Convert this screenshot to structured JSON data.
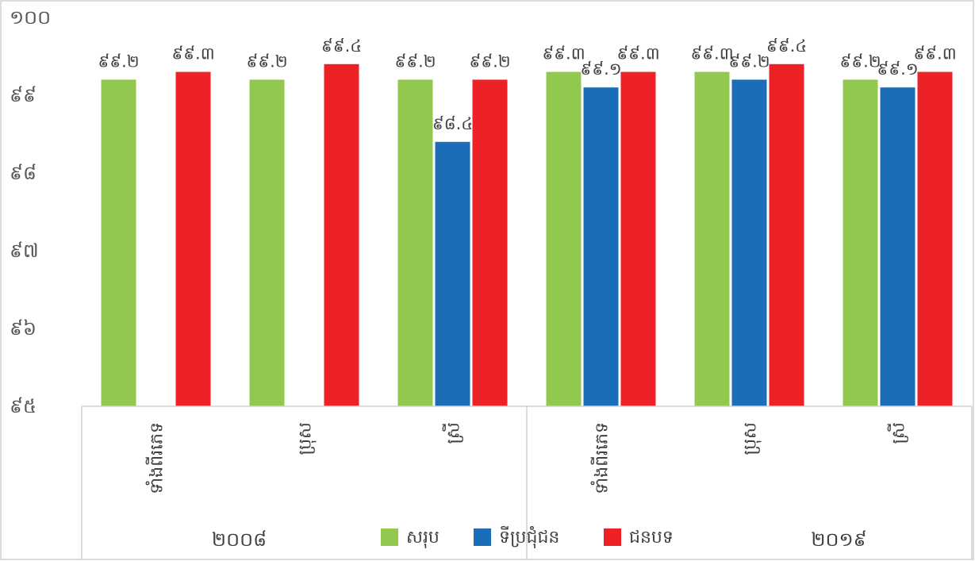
{
  "chart_data": {
    "type": "bar",
    "title": "",
    "xlabel": "",
    "ylabel": "",
    "ylim": [
      95,
      100
    ],
    "y_ticks": [
      "៩៥",
      "៩៦",
      "៩៧",
      "៩៨",
      "៩៩",
      "១០០"
    ],
    "y_tick_values": [
      95,
      96,
      97,
      98,
      99,
      100
    ],
    "groups": [
      {
        "label": "២០០៨",
        "categories": [
          "ទាំងពីរភេទ",
          "ប្រុស",
          "ស្រី"
        ]
      },
      {
        "label": "២០១៩",
        "categories": [
          "ទាំងពីរភេទ",
          "ប្រុស",
          "ស្រី"
        ]
      }
    ],
    "categories": [
      "ទាំងពីរភេទ",
      "ប្រុស",
      "ស្រី",
      "ទាំងពីរភេទ",
      "ប្រុស",
      "ស្រី"
    ],
    "series": [
      {
        "name": "សរុប",
        "color": "#92C84F",
        "values": [
          99.2,
          99.2,
          99.2,
          99.3,
          99.3,
          99.2
        ],
        "labels": [
          "៩៩.២",
          "៩៩.២",
          "៩៩.២",
          "៩៩.៣",
          "៩៩.៣",
          "៩៩.២"
        ]
      },
      {
        "name": "ទីប្រជុំជន",
        "color": "#1B6DB7",
        "values": [
          null,
          null,
          98.4,
          99.1,
          99.2,
          99.1
        ],
        "labels": [
          "",
          "",
          "៩៨.៤",
          "៩៩.១",
          "៩៩.២",
          "៩៩.១"
        ]
      },
      {
        "name": "ជនបទ",
        "color": "#ED2226",
        "values": [
          99.3,
          99.4,
          99.2,
          99.3,
          99.4,
          99.3
        ],
        "labels": [
          "៩៩.៣",
          "៩៩.៤",
          "៩៩.២",
          "៩៩.៣",
          "៩៩.៤",
          "៩៩.៣"
        ]
      }
    ],
    "grid": false,
    "legend_position": "bottom"
  }
}
